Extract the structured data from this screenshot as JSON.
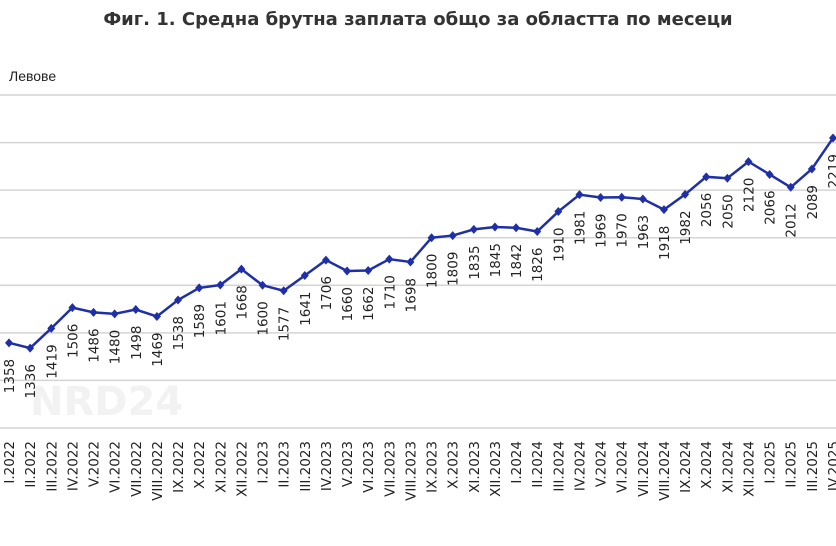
{
  "chart_data": {
    "type": "line",
    "title": "Фиг. 1. Средна брутна заплата общо за областта по месеци",
    "ylabel": "Левове",
    "xlabel": "",
    "ylim": [
      1000,
      2400
    ],
    "grid_step": 200,
    "grid": true,
    "legend": "none",
    "line_color": "#1f2fa8",
    "categories": [
      "I.2022",
      "II.2022",
      "III.2022",
      "IV.2022",
      "V.2022",
      "VI.2022",
      "VII.2022",
      "VIII.2022",
      "IX.2022",
      "X.2022",
      "XI.2022",
      "XII.2022",
      "I.2023",
      "II.2023",
      "III.2023",
      "IV.2023",
      "V.2023",
      "VI.2023",
      "VII.2023",
      "VIII.2023",
      "IX.2023",
      "X.2023",
      "XI.2023",
      "XII.2023",
      "I.2024",
      "II.2024",
      "III.2024",
      "IV.2024",
      "V.2024",
      "VI.2024",
      "VII.2024",
      "VIII.2024",
      "IX.2024",
      "X.2024",
      "XI.2024",
      "XII.2024",
      "I.2025",
      "II.2025",
      "III.2025",
      "IV.2025"
    ],
    "values": [
      1358,
      1336,
      1419,
      1506,
      1486,
      1480,
      1498,
      1469,
      1538,
      1589,
      1601,
      1668,
      1600,
      1577,
      1641,
      1706,
      1660,
      1662,
      1710,
      1698,
      1800,
      1809,
      1835,
      1845,
      1842,
      1826,
      1910,
      1981,
      1969,
      1970,
      1963,
      1918,
      1982,
      2056,
      2050,
      2120,
      2066,
      2012,
      2089,
      2219
    ]
  },
  "watermark": "NRD24"
}
